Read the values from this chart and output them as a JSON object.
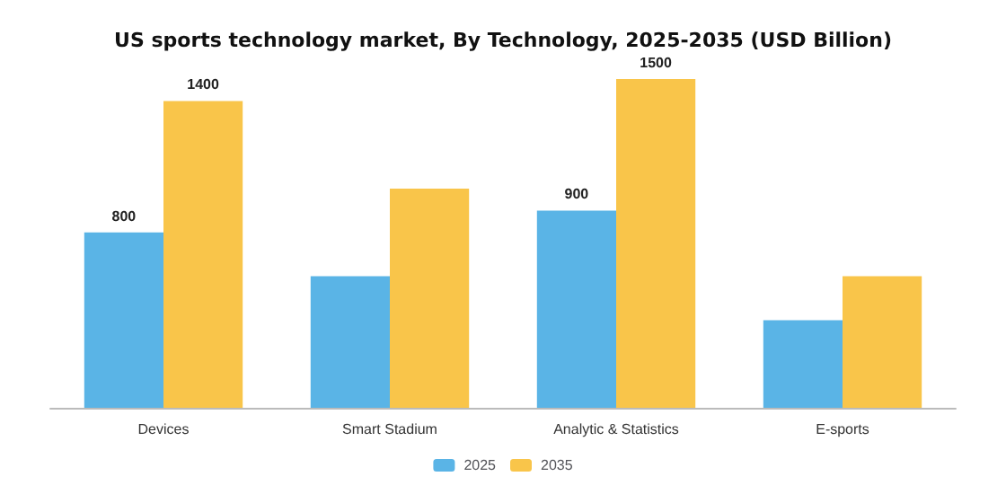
{
  "chart_data": {
    "type": "bar",
    "title": "US sports technology market, By Technology, 2025-2035 (USD Billion)",
    "categories": [
      "Devices",
      "Smart Stadium",
      "Analytic & Statistics",
      "E-sports"
    ],
    "series": [
      {
        "name": "2025",
        "color": "#5ab4e6",
        "values": [
          800,
          600,
          900,
          400
        ],
        "value_labels": [
          "800",
          null,
          "900",
          null
        ]
      },
      {
        "name": "2035",
        "color": "#f9c54a",
        "values": [
          1400,
          1000,
          1500,
          600
        ],
        "value_labels": [
          "1400",
          null,
          "1500",
          null
        ]
      }
    ],
    "legend": "bottom"
  }
}
